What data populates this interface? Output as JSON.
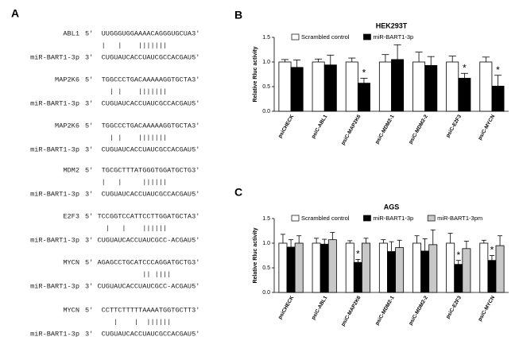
{
  "panel_a": {
    "label": "A",
    "alignments": [
      {
        "gene": "ABL1",
        "target": "5'  UUGGGUGGAAAACAGGGUGCUA3'",
        "pairs": "    |   |    |||||||",
        "mirna": "miR-BART1-3p",
        "mirna_seq": "3'  CUGUAUCACCUAUCGCCACGAU5'"
      },
      {
        "gene": "MAP2K6",
        "target": "5'  TGGCCCTGACAAAAAGGTGCTA3'",
        "pairs": "      | |    |||||||",
        "mirna": "miR-BART1-3p",
        "mirna_seq": "3'  CUGUAUCACCUAUCGCCACGAU5'"
      },
      {
        "gene": "MAP2K6",
        "target": "5'  TGGCCCTGACAAAAAGGTGCTA3'",
        "pairs": "      | |    |||||||",
        "mirna": "miR-BART1-3p",
        "mirna_seq": "3'  CUGUAUCACCUAUCGCCACGAU5'"
      },
      {
        "gene": "MDM2",
        "target": "5'  TGCGCTTTATGGGTGGATGCTG3'",
        "pairs": "    |   |     ||||||",
        "mirna": "miR-BART1-3p",
        "mirna_seq": "3'  CUGUAUCACCUAUCGCCACGAU5'"
      },
      {
        "gene": "E2F3",
        "target": "5' TCCGGTCCATTCCTTGGATGCTA3'",
        "pairs": "     |   |    ||||||",
        "mirna": "miR-BART1-3p",
        "mirna_seq": "3' CUGUAUCACCUAUCGCC-ACGAU5'"
      },
      {
        "gene": "MYCN",
        "target": "5' AGAGCCTGCATCCCAGGATGCTG3'",
        "pairs": "              || ||||",
        "mirna": "miR-BART1-3p",
        "mirna_seq": "3' CUGUAUCACCUAUCGCC-ACGAU5'"
      },
      {
        "gene": "MYCN",
        "target": "5'  CCTTCTTTTTAAAATGGTGCTT3'",
        "pairs": "       |    |  ||||||",
        "mirna": "miR-BART1-3p",
        "mirna_seq": "3'  CUGUAUCACCUAUCGCCACGAU5'"
      }
    ]
  },
  "chart_data": [
    {
      "type": "bar",
      "panel_label": "B",
      "title": "HEK293T",
      "y_label": "Relative Rluc activity",
      "categories": [
        "psiCHECK",
        "psiC-ABL1",
        "psiC-MAP2K6",
        "psiC-MDM2-1",
        "psiC-MDM2-2",
        "psiC-E2F3",
        "psiC-MYCN"
      ],
      "series": [
        {
          "name": "Scrambled control",
          "color": "#ffffff",
          "values": [
            1.0,
            1.0,
            1.0,
            1.0,
            1.0,
            1.0,
            1.0
          ],
          "errors": [
            0.05,
            0.06,
            0.08,
            0.15,
            0.2,
            0.12,
            0.1
          ]
        },
        {
          "name": "miR-BART1-3p",
          "color": "#000000",
          "values": [
            0.89,
            0.94,
            0.57,
            1.05,
            0.93,
            0.67,
            0.51
          ],
          "errors": [
            0.15,
            0.2,
            0.1,
            0.3,
            0.18,
            0.1,
            0.22
          ],
          "significance_labels": [
            null,
            null,
            "*",
            null,
            null,
            "*",
            "*"
          ]
        }
      ],
      "ylim": [
        0,
        1.5
      ],
      "yticks": [
        {
          "value": 0,
          "label": "0.0"
        },
        0.5,
        {
          "value": 1,
          "label": "1.0"
        },
        1.5
      ]
    },
    {
      "type": "bar",
      "panel_label": "C",
      "title": "AGS",
      "y_label": "Relative Rluc activity",
      "categories": [
        "psiCHECK",
        "psiC-ABL1",
        "psiC-MAP2K6",
        "psiC-MDM2-1",
        "psiC-MDM2-2",
        "psiC-E2F3",
        "psiC-MYCN"
      ],
      "series": [
        {
          "name": "Scrambled control",
          "color": "#ffffff",
          "values": [
            1.0,
            1.0,
            1.0,
            1.0,
            1.0,
            1.0,
            1.0
          ],
          "errors": [
            0.18,
            0.1,
            0.05,
            0.07,
            0.15,
            0.2,
            0.06
          ]
        },
        {
          "name": "miR-BART1-3p",
          "color": "#000000",
          "values": [
            0.92,
            0.98,
            0.61,
            0.83,
            0.84,
            0.57,
            0.65
          ],
          "errors": [
            0.15,
            0.1,
            0.06,
            0.2,
            0.25,
            0.08,
            0.1
          ],
          "significance_labels": [
            null,
            null,
            "*",
            null,
            null,
            "*",
            "*"
          ]
        },
        {
          "name": "miR-BART1-3pm",
          "color": "#c8c8c8",
          "values": [
            1.0,
            1.07,
            1.0,
            0.91,
            0.97,
            0.89,
            0.95
          ],
          "errors": [
            0.15,
            0.15,
            0.1,
            0.15,
            0.3,
            0.15,
            0.2
          ]
        }
      ],
      "ylim": [
        0,
        1.5
      ],
      "yticks": [
        {
          "value": 0,
          "label": "0.0"
        },
        0.5,
        {
          "value": 1,
          "label": "1.0"
        },
        1.5
      ]
    }
  ]
}
